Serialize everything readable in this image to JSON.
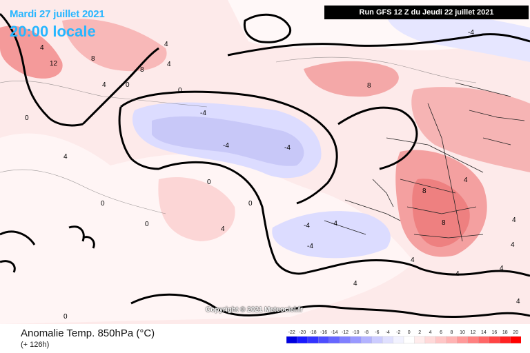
{
  "header": {
    "date": "Mardi 27 juillet 2021",
    "time": "20:00 locale",
    "run": "Run GFS 12 Z du Jeudi 22 juillet 2021"
  },
  "copyright": "Copyright © 2021 Meteociel.fr",
  "footer": {
    "title": "Anomalie Temp. 850hPa (°C)",
    "lead": "(+ 126h)"
  },
  "legend": {
    "ticks": [
      "-22",
      "-20",
      "-18",
      "-16",
      "-14",
      "-12",
      "-10",
      "-8",
      "-6",
      "-4",
      "-2",
      "0",
      "2",
      "4",
      "6",
      "8",
      "10",
      "12",
      "14",
      "16",
      "18",
      "20"
    ],
    "colors": [
      "#0000e0",
      "#1a1aff",
      "#3333ff",
      "#4d4dff",
      "#6666ff",
      "#8080ff",
      "#9999ff",
      "#b3b3ff",
      "#ccccff",
      "#e0e0ff",
      "#f2f2ff",
      "#ffffff",
      "#ffecec",
      "#ffd9d9",
      "#ffc6c6",
      "#ffb3b3",
      "#ff9999",
      "#ff8080",
      "#ff6666",
      "#ff4444",
      "#ff2222",
      "#ff0000"
    ]
  },
  "contour_labels": [
    "4",
    "12",
    "8",
    "4",
    "4",
    "8",
    "4",
    "0",
    "4",
    "-4",
    "-4",
    "-4",
    "0",
    "0",
    "0",
    "-4",
    "4",
    "8",
    "8",
    "4",
    "4",
    "-4",
    "0",
    "0",
    "0",
    "4",
    "-4",
    "4",
    "8",
    "4",
    "0",
    "-4",
    "4",
    "4",
    "4"
  ],
  "colors": {
    "title_accent": "#27b6ff",
    "warm_strong": "#f08080",
    "warm_mid": "#f8b8b8",
    "warm_light": "#fde0e0",
    "cold_light": "#dcdcff",
    "cold_mid": "#c8c8f8",
    "coast": "#000000"
  }
}
